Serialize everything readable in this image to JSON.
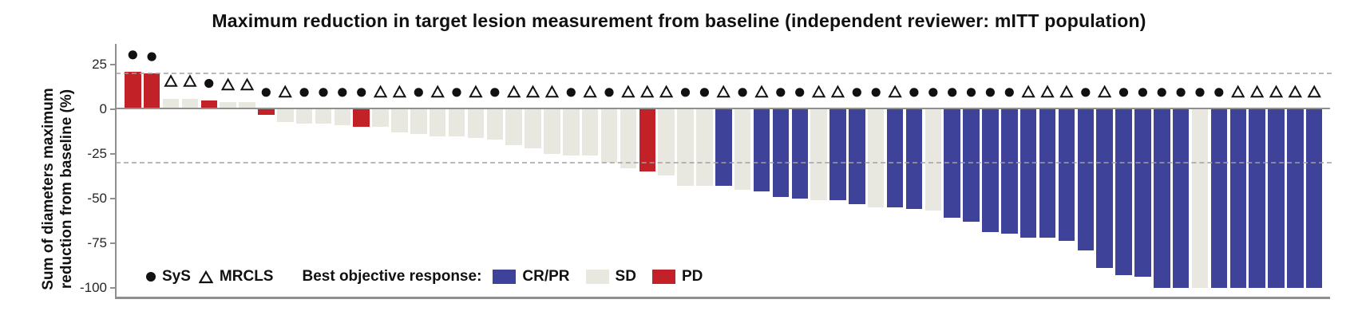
{
  "title": "Maximum reduction in target lesion measurement from baseline (independent reviewer: mITT population)",
  "y_axis": {
    "label_line1": "Sum of diameters maximum",
    "label_line2": "reduction from baseline (%)",
    "ticks": [
      25,
      0,
      -25,
      -50,
      -75,
      -100
    ]
  },
  "legend": {
    "sys_label": "SyS",
    "mrcls_label": "MRCLS",
    "response_label": "Best objective response:",
    "crpr_label": "CR/PR",
    "sd_label": "SD",
    "pd_label": "PD"
  },
  "colors": {
    "crpr": "#3F4299",
    "sd": "#E8E8E1",
    "pd": "#C12127",
    "marker": "#111111",
    "axis": "#8f8f8f",
    "dashed": "#a0a0a0"
  },
  "chart_data": {
    "type": "bar",
    "title": "Maximum reduction in target lesion measurement from baseline (independent reviewer: mITT population)",
    "xlabel": "",
    "ylabel": "Sum of diameters maximum reduction from baseline (%)",
    "ylim": [
      -107,
      37
    ],
    "yticks": [
      25,
      0,
      -25,
      -50,
      -75,
      -100
    ],
    "grid": false,
    "reference_lines_dashed": [
      20,
      -30
    ],
    "marker_offset_above_bar": 9.5,
    "n_patients": 63,
    "legend_markers": {
      "circle": "SyS",
      "triangle": "MRCLS"
    },
    "legend_bars": {
      "CR/PR": "crpr",
      "SD": "sd",
      "PD": "pd"
    },
    "patients": [
      {
        "value": 21,
        "response": "PD",
        "subtype": "SyS"
      },
      {
        "value": 20,
        "response": "PD",
        "subtype": "SyS"
      },
      {
        "value": 6,
        "response": "SD",
        "subtype": "MRCLS"
      },
      {
        "value": 6,
        "response": "SD",
        "subtype": "MRCLS"
      },
      {
        "value": 5,
        "response": "PD",
        "subtype": "SyS"
      },
      {
        "value": 4,
        "response": "SD",
        "subtype": "MRCLS"
      },
      {
        "value": 4,
        "response": "SD",
        "subtype": "MRCLS"
      },
      {
        "value": -3,
        "response": "PD",
        "subtype": "SyS"
      },
      {
        "value": -7,
        "response": "SD",
        "subtype": "MRCLS"
      },
      {
        "value": -8,
        "response": "SD",
        "subtype": "SyS"
      },
      {
        "value": -8,
        "response": "SD",
        "subtype": "SyS"
      },
      {
        "value": -9,
        "response": "SD",
        "subtype": "SyS"
      },
      {
        "value": -10,
        "response": "PD",
        "subtype": "SyS"
      },
      {
        "value": -10,
        "response": "SD",
        "subtype": "MRCLS"
      },
      {
        "value": -13,
        "response": "SD",
        "subtype": "MRCLS"
      },
      {
        "value": -14,
        "response": "SD",
        "subtype": "SyS"
      },
      {
        "value": -15,
        "response": "SD",
        "subtype": "MRCLS"
      },
      {
        "value": -15,
        "response": "SD",
        "subtype": "SyS"
      },
      {
        "value": -16,
        "response": "SD",
        "subtype": "MRCLS"
      },
      {
        "value": -17,
        "response": "SD",
        "subtype": "SyS"
      },
      {
        "value": -20,
        "response": "SD",
        "subtype": "MRCLS"
      },
      {
        "value": -22,
        "response": "SD",
        "subtype": "MRCLS"
      },
      {
        "value": -25,
        "response": "SD",
        "subtype": "MRCLS"
      },
      {
        "value": -26,
        "response": "SD",
        "subtype": "SyS"
      },
      {
        "value": -26,
        "response": "SD",
        "subtype": "MRCLS"
      },
      {
        "value": -30,
        "response": "SD",
        "subtype": "SyS"
      },
      {
        "value": -33,
        "response": "SD",
        "subtype": "MRCLS"
      },
      {
        "value": -35,
        "response": "PD",
        "subtype": "MRCLS"
      },
      {
        "value": -37,
        "response": "SD",
        "subtype": "MRCLS"
      },
      {
        "value": -43,
        "response": "SD",
        "subtype": "SyS"
      },
      {
        "value": -43,
        "response": "SD",
        "subtype": "SyS"
      },
      {
        "value": -43,
        "response": "CR/PR",
        "subtype": "MRCLS"
      },
      {
        "value": -45,
        "response": "SD",
        "subtype": "SyS"
      },
      {
        "value": -46,
        "response": "CR/PR",
        "subtype": "MRCLS"
      },
      {
        "value": -49,
        "response": "CR/PR",
        "subtype": "SyS"
      },
      {
        "value": -50,
        "response": "CR/PR",
        "subtype": "SyS"
      },
      {
        "value": -51,
        "response": "SD",
        "subtype": "MRCLS"
      },
      {
        "value": -51,
        "response": "CR/PR",
        "subtype": "MRCLS"
      },
      {
        "value": -53,
        "response": "CR/PR",
        "subtype": "SyS"
      },
      {
        "value": -55,
        "response": "SD",
        "subtype": "SyS"
      },
      {
        "value": -55,
        "response": "CR/PR",
        "subtype": "MRCLS"
      },
      {
        "value": -56,
        "response": "CR/PR",
        "subtype": "SyS"
      },
      {
        "value": -57,
        "response": "SD",
        "subtype": "SyS"
      },
      {
        "value": -61,
        "response": "CR/PR",
        "subtype": "SyS"
      },
      {
        "value": -63,
        "response": "CR/PR",
        "subtype": "SyS"
      },
      {
        "value": -69,
        "response": "CR/PR",
        "subtype": "SyS"
      },
      {
        "value": -70,
        "response": "CR/PR",
        "subtype": "SyS"
      },
      {
        "value": -72,
        "response": "CR/PR",
        "subtype": "MRCLS"
      },
      {
        "value": -72,
        "response": "CR/PR",
        "subtype": "MRCLS"
      },
      {
        "value": -74,
        "response": "CR/PR",
        "subtype": "MRCLS"
      },
      {
        "value": -79,
        "response": "CR/PR",
        "subtype": "SyS"
      },
      {
        "value": -89,
        "response": "CR/PR",
        "subtype": "MRCLS"
      },
      {
        "value": -93,
        "response": "CR/PR",
        "subtype": "SyS"
      },
      {
        "value": -94,
        "response": "CR/PR",
        "subtype": "SyS"
      },
      {
        "value": -100,
        "response": "CR/PR",
        "subtype": "SyS"
      },
      {
        "value": -100,
        "response": "CR/PR",
        "subtype": "SyS"
      },
      {
        "value": -100,
        "response": "SD",
        "subtype": "SyS"
      },
      {
        "value": -100,
        "response": "CR/PR",
        "subtype": "SyS"
      },
      {
        "value": -100,
        "response": "CR/PR",
        "subtype": "MRCLS"
      },
      {
        "value": -100,
        "response": "CR/PR",
        "subtype": "MRCLS"
      },
      {
        "value": -100,
        "response": "CR/PR",
        "subtype": "MRCLS"
      },
      {
        "value": -100,
        "response": "CR/PR",
        "subtype": "MRCLS"
      },
      {
        "value": -100,
        "response": "CR/PR",
        "subtype": "MRCLS"
      }
    ]
  }
}
